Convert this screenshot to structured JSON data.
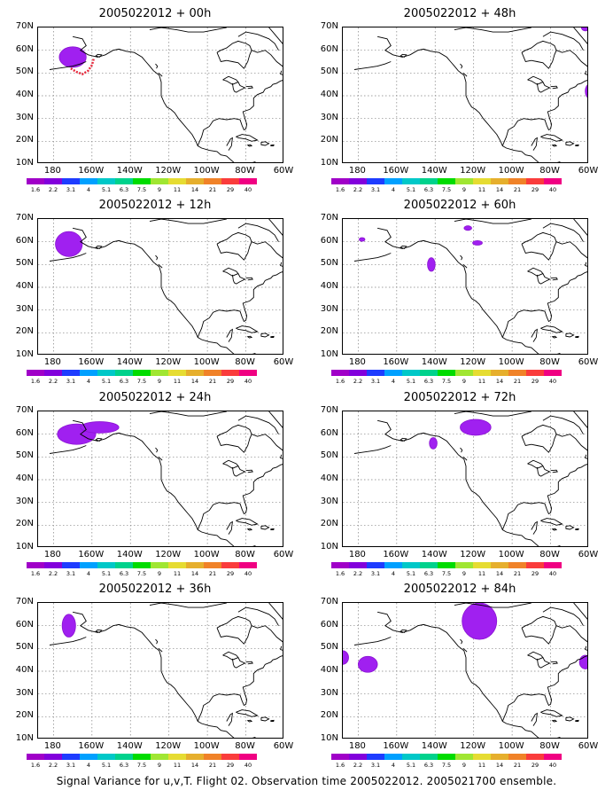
{
  "panels": [
    {
      "title": "2005022012 + 00h"
    },
    {
      "title": "2005022012 + 48h"
    },
    {
      "title": "2005022012 + 12h"
    },
    {
      "title": "2005022012 + 60h"
    },
    {
      "title": "2005022012 + 24h"
    },
    {
      "title": "2005022012 + 72h"
    },
    {
      "title": "2005022012 + 36h"
    },
    {
      "title": "2005022012 + 84h"
    }
  ],
  "lat_labels": [
    "70N",
    "60N",
    "50N",
    "40N",
    "30N",
    "20N",
    "10N"
  ],
  "lon_labels": [
    "180",
    "160W",
    "140W",
    "120W",
    "100W",
    "80W",
    "60W"
  ],
  "colorbar": {
    "labels": [
      "1.6",
      "2.2",
      "3.1",
      "4",
      "5.1",
      "6.3",
      "7.5",
      "9",
      "11",
      "14",
      "21",
      "29",
      "40"
    ],
    "colors": [
      "#a000c8",
      "#8200dc",
      "#1e3cff",
      "#00a0ff",
      "#00c8c8",
      "#00d28c",
      "#00dc00",
      "#a0e632",
      "#e6dc32",
      "#e6af2d",
      "#f08228",
      "#fa3c3c",
      "#f00082"
    ]
  },
  "map_colors": {
    "signal_fill": "#a020f0",
    "signal_edge": "#8a14d2",
    "observation_track": "#e8283c",
    "coastline": "#000000",
    "grid": "#808080"
  },
  "caption": "Signal Variance for u,v,T. Flight 02. Observation time 2005022012. 2005021700 ensemble."
}
